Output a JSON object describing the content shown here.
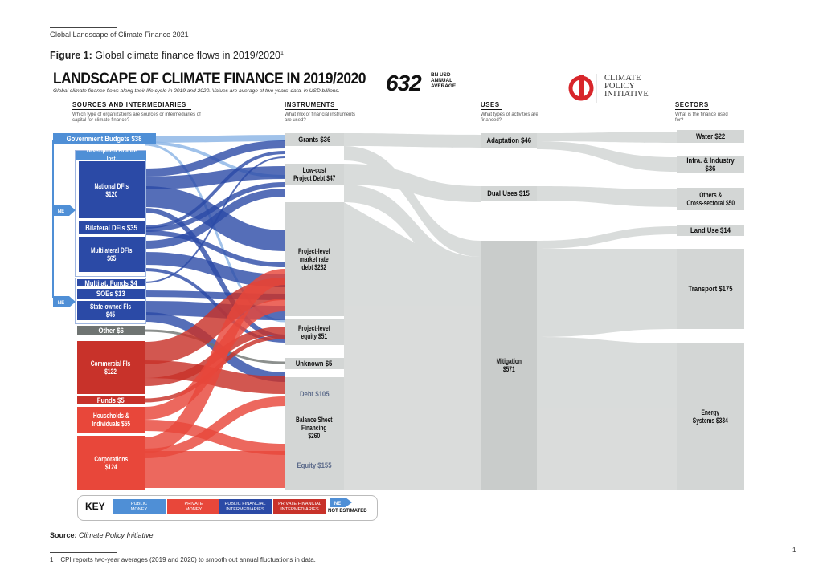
{
  "header": {
    "report_title": "Global Landscape of Climate Finance 2021",
    "figure_label": "Figure 1:",
    "figure_title": "Global climate finance flows in 2019/2020",
    "figure_sup": "1"
  },
  "diagram": {
    "title": "LANDSCAPE OF CLIMATE FINANCE IN 2019/2020",
    "subtitle": "Global climate finance flows along their life cycle in 2019 and 2020. Values are average of two years' data, in USD billions.",
    "total_value": "632",
    "total_unit_lines": [
      "BN USD",
      "ANNUAL",
      "AVERAGE"
    ],
    "logo_lines": [
      "CLIMATE",
      "POLICY",
      "INITIATIVE"
    ]
  },
  "columns": [
    {
      "heading": "SOURCES AND INTERMEDIARIES",
      "question": "Which type of organizations are sources or intermediaries of capital for climate finance?"
    },
    {
      "heading": "INSTRUMENTS",
      "question": "What mix of financial instruments are used?"
    },
    {
      "heading": "USES",
      "question": "What types of activities are financed?"
    },
    {
      "heading": "SECTORS",
      "question": "What is the finance used for?"
    }
  ],
  "sources": {
    "gov_budgets": "Government Budgets $38",
    "dev_finance_group": "Development Finance Inst.",
    "national_dfis": [
      "National DFIs",
      "$120"
    ],
    "bilateral_dfis": "Bilateral DFIs $35",
    "multilateral_dfis": [
      "Multilateral DFIs",
      "$65"
    ],
    "multilat_funds": "Multilat. Funds $4",
    "soes": "SOEs $13",
    "state_owned_fis": [
      "State-owned FIs",
      "$45"
    ],
    "other": "Other $6",
    "commercial_fis": [
      "Commercial FIs",
      "$122"
    ],
    "funds": "Funds $5",
    "households": [
      "Households &",
      "Individuals $55"
    ],
    "corporations": [
      "Corporations",
      "$124"
    ],
    "ne_badge": "NE"
  },
  "instruments": {
    "grants": "Grants $36",
    "low_cost_debt": [
      "Low-cost",
      "Project Debt $47"
    ],
    "market_rate_debt": [
      "Project-level",
      "market rate",
      "debt $232"
    ],
    "project_equity": [
      "Project-level",
      "equity $51"
    ],
    "unknown": "Unknown $5",
    "bs_debt": "Debt $105",
    "bs_financing": [
      "Balance Sheet",
      "Financing",
      "$260"
    ],
    "bs_equity": "Equity $155"
  },
  "uses": {
    "adaptation": "Adaptation $46",
    "dual_uses": "Dual Uses $15",
    "mitigation": [
      "Mitigation",
      "$571"
    ]
  },
  "sectors": {
    "water": "Water $22",
    "infra": "Infra. & Industry $36",
    "others": [
      "Others &",
      "Cross-sectoral $50"
    ],
    "land_use": "Land Use $14",
    "transport": "Transport $175",
    "energy": [
      "Energy",
      "Systems $334"
    ]
  },
  "key": {
    "label": "KEY",
    "items": [
      {
        "text": [
          "PUBLIC",
          "MONEY"
        ],
        "color": "#4f8fd6"
      },
      {
        "text": [
          "PRIVATE",
          "MONEY"
        ],
        "color": "#e8473a"
      },
      {
        "text": [
          "PUBLIC FINANCIAL",
          "INTERMEDIARIES"
        ],
        "color": "#2b4aa6"
      },
      {
        "text": [
          "PRIVATE FINANCIAL",
          "INTERMEDIARIES"
        ],
        "color": "#c8322a"
      }
    ],
    "ne_badge": "NE",
    "ne_label": "NOT ESTIMATED"
  },
  "colors": {
    "public_money": "#4f8fd6",
    "private_money": "#e8473a",
    "public_fi": "#2b4aa6",
    "private_fi": "#c8322a",
    "grey_node": "#c9cccb",
    "flow_grey": "#d3d6d5",
    "other_grey": "#6f7472"
  },
  "source_line": {
    "label": "Source:",
    "value": "Climate Policy Initiative"
  },
  "footnote": {
    "number": "1",
    "text": "CPI reports two-year averages (2019 and 2020) to smooth out annual fluctuations in data."
  },
  "page_number": "1"
}
